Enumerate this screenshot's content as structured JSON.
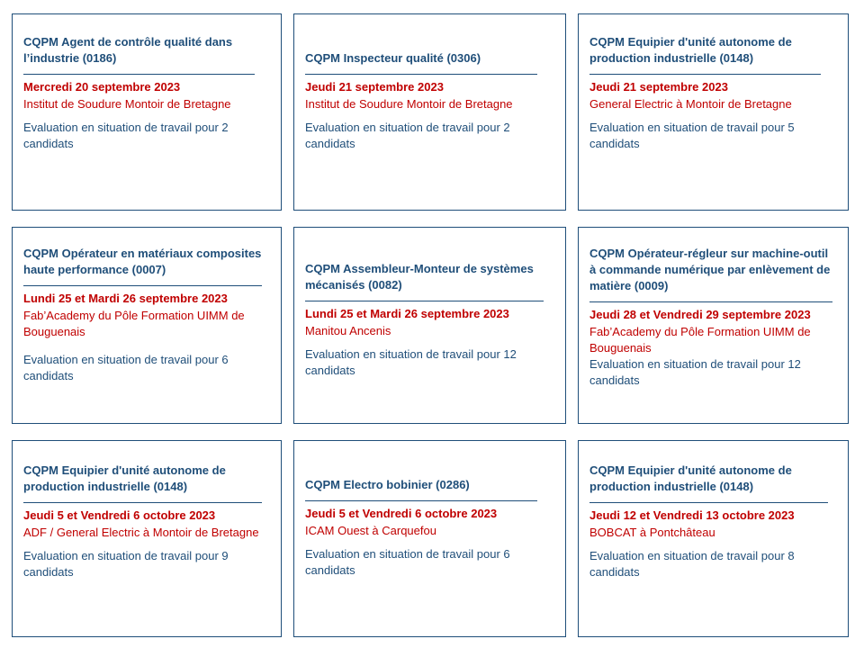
{
  "cards": [
    {
      "title": "CQPM Agent de contrôle qualité dans l’industrie (0186)",
      "date": "Mercredi 20 septembre 2023",
      "place": "Institut de Soudure Montoir de Bretagne",
      "description": "Evaluation en situation de travail pour 2 candidats"
    },
    {
      "title": "CQPM Inspecteur qualité (0306)",
      "date": "Jeudi 21 septembre 2023",
      "place": "Institut de Soudure Montoir de Bretagne",
      "description": "Evaluation en situation de travail pour 2 candidats"
    },
    {
      "title": "CQPM Equipier d'unité autonome de production industrielle (0148)",
      "date": "Jeudi 21 septembre 2023",
      "place": "General Electric à Montoir de Bretagne",
      "description": "Evaluation en situation de travail pour 5 candidats"
    },
    {
      "title": "CQPM Opérateur en matériaux composites haute performance (0007)",
      "date": "Lundi 25 et Mardi 26 septembre 2023",
      "place": "Fab’Academy du Pôle Formation UIMM de Bouguenais",
      "description": "Evaluation en situation de travail pour 6 candidats"
    },
    {
      "title": "CQPM Assembleur-Monteur de systèmes mécanisés (0082)",
      "date": "Lundi 25 et Mardi 26 septembre 2023",
      "place": "Manitou Ancenis",
      "description": "Evaluation en situation de travail pour 12 candidats"
    },
    {
      "title": "CQPM Opérateur-régleur sur machine-outil à commande numérique par enlèvement de matière (0009)",
      "date": "Jeudi 28 et Vendredi 29 septembre 2023",
      "place": "Fab’Academy du Pôle Formation UIMM de Bouguenais",
      "description": "Evaluation en situation de travail pour 12 candidats"
    },
    {
      "title": "CQPM Equipier d'unité autonome de production industrielle (0148)",
      "date": "Jeudi 5 et Vendredi 6 octobre 2023",
      "place": "ADF / General Electric à Montoir de Bretagne",
      "description": "Evaluation en situation de travail pour 9 candidats"
    },
    {
      "title": "CQPM Electro bobinier (0286)",
      "date": "Jeudi 5 et Vendredi 6 octobre 2023",
      "place": "ICAM Ouest à Carquefou",
      "description": "Evaluation en situation de travail pour 6 candidats"
    },
    {
      "title": "CQPM Equipier d'unité autonome de production industrielle (0148)",
      "date": "Jeudi 12 et Vendredi 13 octobre 2023",
      "place": "BOBCAT à Pontchâteau",
      "description": "Evaluation en situation de travail pour 8 candidats"
    }
  ]
}
